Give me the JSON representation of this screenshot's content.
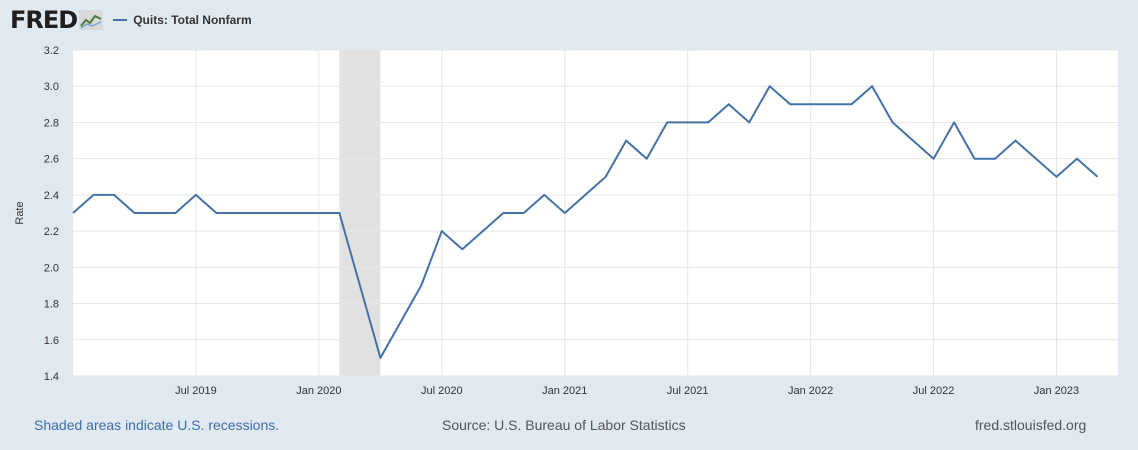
{
  "header": {
    "logo_text": "FRED",
    "legend_label": "Quits: Total Nonfarm"
  },
  "footer": {
    "recession_note": "Shaded areas indicate U.S. recessions.",
    "source": "Source: U.S. Bureau of Labor Statistics",
    "site": "fred.stlouisfed.org"
  },
  "colors": {
    "series": "#4572a7",
    "recession": "#e1e1e1",
    "background": "#e1e9f0",
    "plot": "#ffffff",
    "grid": "#e6e6e6"
  },
  "chart_data": {
    "type": "line",
    "title": "",
    "xlabel": "",
    "ylabel": "Rate",
    "ylim": [
      1.4,
      3.2
    ],
    "yticks": [
      1.4,
      1.6,
      1.8,
      2.0,
      2.2,
      2.4,
      2.6,
      2.8,
      3.0,
      3.2
    ],
    "ytick_labels": [
      "1.4",
      "1.6",
      "1.8",
      "2.0",
      "2.2",
      "2.4",
      "2.6",
      "2.8",
      "3.0",
      "3.2"
    ],
    "xlim": [
      "2019-01",
      "2023-04"
    ],
    "xticks": [
      "2019-07",
      "2020-01",
      "2020-07",
      "2021-01",
      "2021-07",
      "2022-01",
      "2022-07",
      "2023-01"
    ],
    "xtick_labels": [
      "Jul 2019",
      "Jan 2020",
      "Jul 2020",
      "Jan 2021",
      "Jul 2021",
      "Jan 2022",
      "Jul 2022",
      "Jan 2023"
    ],
    "grid": true,
    "recessions": [
      {
        "start": "2020-02",
        "end": "2020-04"
      }
    ],
    "series": [
      {
        "name": "Quits: Total Nonfarm",
        "x": [
          "2019-01",
          "2019-02",
          "2019-03",
          "2019-04",
          "2019-05",
          "2019-06",
          "2019-07",
          "2019-08",
          "2019-09",
          "2019-10",
          "2019-11",
          "2019-12",
          "2020-01",
          "2020-02",
          "2020-03",
          "2020-04",
          "2020-05",
          "2020-06",
          "2020-07",
          "2020-08",
          "2020-09",
          "2020-10",
          "2020-11",
          "2020-12",
          "2021-01",
          "2021-02",
          "2021-03",
          "2021-04",
          "2021-05",
          "2021-06",
          "2021-07",
          "2021-08",
          "2021-09",
          "2021-10",
          "2021-11",
          "2021-12",
          "2022-01",
          "2022-02",
          "2022-03",
          "2022-04",
          "2022-05",
          "2022-06",
          "2022-07",
          "2022-08",
          "2022-09",
          "2022-10",
          "2022-11",
          "2022-12",
          "2023-01",
          "2023-02",
          "2023-03"
        ],
        "values": [
          2.3,
          2.4,
          2.4,
          2.3,
          2.3,
          2.3,
          2.4,
          2.3,
          2.3,
          2.3,
          2.3,
          2.3,
          2.3,
          2.3,
          1.9,
          1.5,
          1.7,
          1.9,
          2.2,
          2.1,
          2.2,
          2.3,
          2.3,
          2.4,
          2.3,
          2.4,
          2.5,
          2.7,
          2.6,
          2.8,
          2.8,
          2.8,
          2.9,
          2.8,
          3.0,
          2.9,
          2.9,
          2.9,
          2.9,
          3.0,
          2.8,
          2.7,
          2.6,
          2.8,
          2.6,
          2.6,
          2.7,
          2.6,
          2.5,
          2.6,
          2.5
        ]
      }
    ]
  }
}
